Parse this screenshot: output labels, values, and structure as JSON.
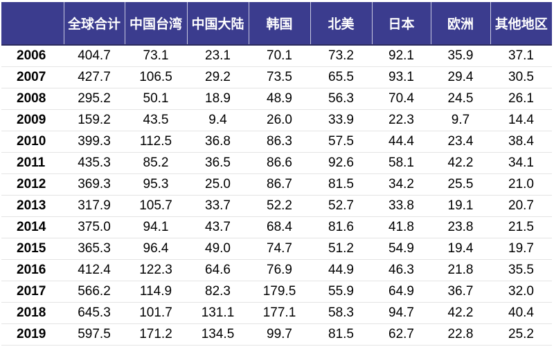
{
  "table": {
    "headers": [
      "全球合计",
      "中国台湾",
      "中国大陆",
      "韩国",
      "北美",
      "日本",
      "欧洲",
      "其他地区"
    ],
    "rows": [
      [
        "2006",
        "404.7",
        "73.1",
        "23.1",
        "70.1",
        "73.2",
        "92.1",
        "35.9",
        "37.1"
      ],
      [
        "2007",
        "427.7",
        "106.5",
        "29.2",
        "73.5",
        "65.5",
        "93.1",
        "29.4",
        "30.5"
      ],
      [
        "2008",
        "295.2",
        "50.1",
        "18.9",
        "48.9",
        "56.3",
        "70.4",
        "24.5",
        "26.1"
      ],
      [
        "2009",
        "159.2",
        "43.5",
        "9.4",
        "26.0",
        "33.9",
        "22.3",
        "9.7",
        "14.4"
      ],
      [
        "2010",
        "399.3",
        "112.5",
        "36.8",
        "86.3",
        "57.5",
        "44.4",
        "23.4",
        "38.4"
      ],
      [
        "2011",
        "435.3",
        "85.2",
        "36.5",
        "86.6",
        "92.6",
        "58.1",
        "42.2",
        "34.1"
      ],
      [
        "2012",
        "369.3",
        "95.3",
        "25.0",
        "86.7",
        "81.5",
        "34.2",
        "25.5",
        "21.0"
      ],
      [
        "2013",
        "317.9",
        "105.7",
        "33.7",
        "52.2",
        "52.7",
        "33.8",
        "19.1",
        "20.7"
      ],
      [
        "2014",
        "375.0",
        "94.1",
        "43.7",
        "68.4",
        "81.6",
        "41.8",
        "23.8",
        "21.5"
      ],
      [
        "2015",
        "365.3",
        "96.4",
        "49.0",
        "74.7",
        "51.2",
        "54.9",
        "19.4",
        "19.7"
      ],
      [
        "2016",
        "412.4",
        "122.3",
        "64.6",
        "76.9",
        "44.9",
        "46.3",
        "21.8",
        "35.5"
      ],
      [
        "2017",
        "566.2",
        "114.9",
        "82.3",
        "179.5",
        "55.9",
        "64.9",
        "36.7",
        "32.0"
      ],
      [
        "2018",
        "645.3",
        "101.7",
        "131.1",
        "177.1",
        "58.3",
        "94.7",
        "42.2",
        "40.4"
      ],
      [
        "2019",
        "597.5",
        "171.2",
        "134.5",
        "99.7",
        "81.5",
        "62.7",
        "22.8",
        "25.2"
      ]
    ]
  }
}
